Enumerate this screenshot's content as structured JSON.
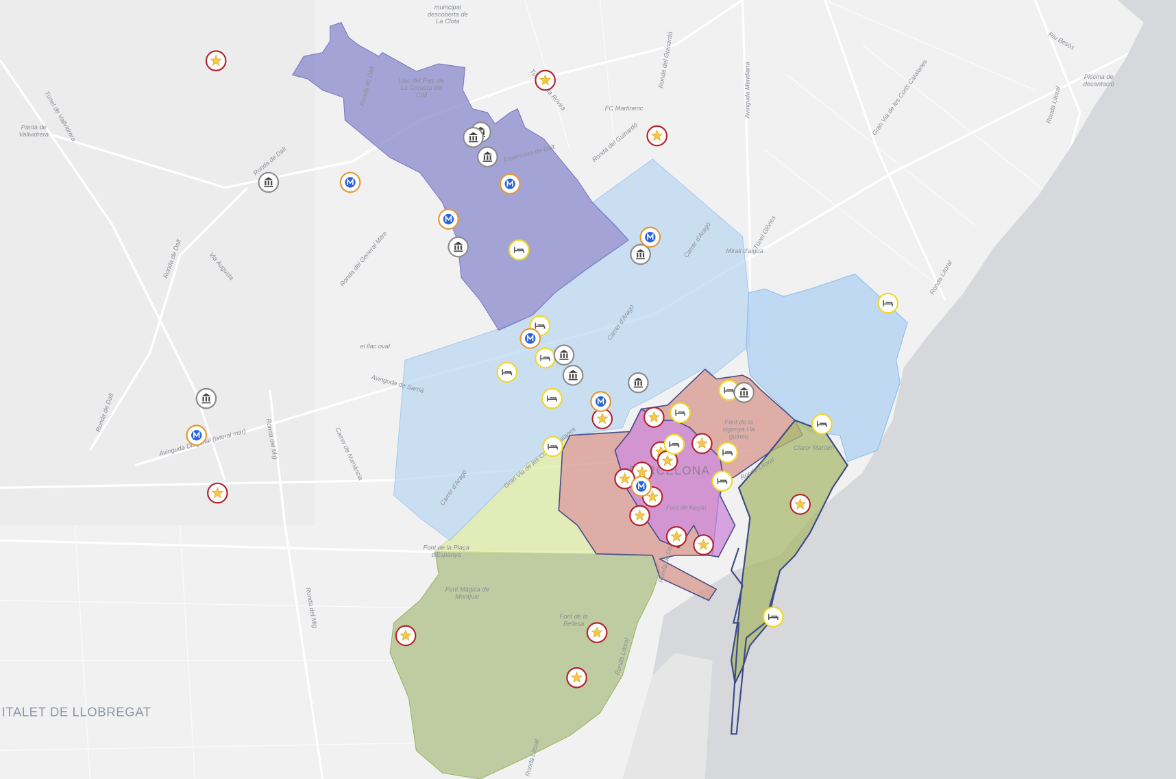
{
  "map": {
    "labels": [
      [
        "municipal",
        "descoberta de",
        "La Clota"
      ],
      [
        "Llac del Parc de",
        "La Creueta del",
        "Coll"
      ],
      [
        "Panta de",
        "Vallvidrera"
      ],
      "Túnel de Vallvidrera",
      "Ronda de Dalt",
      "Ronda de Dalt",
      "Ronda de Dalt",
      "Ronda de Dalt",
      "Via Augusta",
      "Ronda del General Mitre",
      "Travessera de Dalt",
      "Túnel de la Rovira",
      "FC Martinenc",
      "Ronda del Guinardó",
      "Ronda del Guinardó",
      "Avinguda Meridiana",
      "Gran Via de les Corts Catalanes",
      "Riu Besòs",
      [
        "Piscina de",
        "decantació"
      ],
      "Ronda Litoral",
      "Ronda Litoral",
      "Túnel Glòries",
      "Mirall d'aigua",
      "Carrer d'Aragó",
      "Carrer d'Aragó",
      "Carrer d'Aragó",
      "el llac oval",
      "Avinguda de Sarrià",
      "Avinguda Diagonal (lateral mar)",
      "Ronda del Mig",
      "Carrer de Numància",
      "Ronda del Mig",
      "Gran Via de les Corts Catalanes",
      [
        "Font de la",
        "cigonya i la",
        "guineu"
      ],
      "Claror Marítim",
      "Ronda Litoral",
      "BARCELONA",
      "Font de Neptú",
      [
        "Font de la Plaça",
        "d'Espanya"
      ],
      [
        "Font Màgica de",
        "Montjuïc"
      ],
      [
        "Font de la",
        "Bellesa"
      ],
      "Ronda Litoral",
      "Ronda Litoral",
      "ITALET DE LLOBREGAT",
      "Ronda de Dalt"
    ]
  }
}
